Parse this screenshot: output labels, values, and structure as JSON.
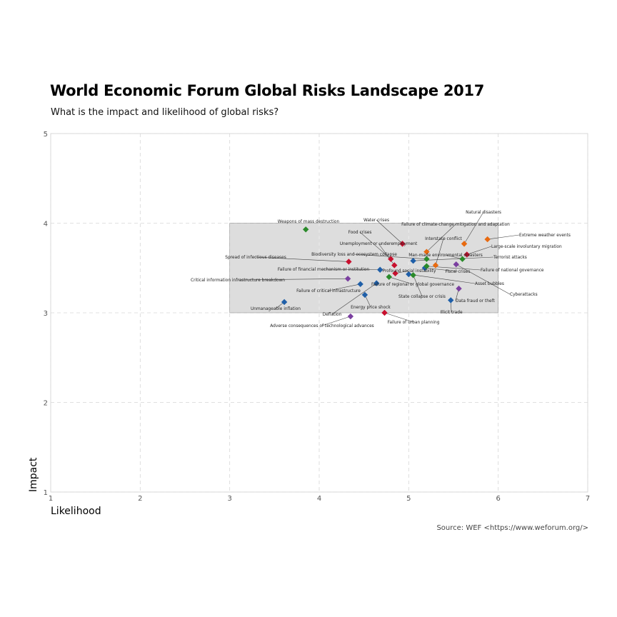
{
  "chart_data": {
    "type": "scatter",
    "title": "World Economic Forum Global Risks Landscape 2017",
    "subtitle": "What is the impact and likelihood of global risks?",
    "xlabel": "Likelihood",
    "ylabel": "Impact",
    "caption": "Source: WEF <https://www.weforum.org/>",
    "xlim": [
      1,
      7
    ],
    "ylim": [
      1,
      5
    ],
    "xticks": [
      "1",
      "2",
      "3",
      "4",
      "5",
      "6",
      "7"
    ],
    "yticks": [
      "1",
      "2",
      "3",
      "4",
      "5"
    ],
    "grid": true,
    "highlight_region": {
      "x": [
        3,
        6
      ],
      "y": [
        3,
        4
      ]
    },
    "colors": {
      "economic": "#1f5fa8",
      "environmental": "#2a8a2a",
      "geopolitical": "#c8102e",
      "societal": "#e86a10",
      "technological": "#7b3fa0"
    },
    "points": [
      {
        "label": "Weapons of mass destruction",
        "x": 3.85,
        "y": 3.93,
        "color": "#2a8a2a"
      },
      {
        "label": "Water crises",
        "x": 4.93,
        "y": 3.77,
        "color": "#c8102e"
      },
      {
        "label": "Natural disasters",
        "x": 5.62,
        "y": 3.77,
        "color": "#e86a10"
      },
      {
        "label": "Failure of climate-change mitigation and adaptation",
        "x": 5.2,
        "y": 3.68,
        "color": "#e86a10"
      },
      {
        "label": "Extreme weather events",
        "x": 5.88,
        "y": 3.82,
        "color": "#e86a10"
      },
      {
        "label": "Food crises",
        "x": 4.8,
        "y": 3.6,
        "color": "#c8102e"
      },
      {
        "label": "Interstate conflict",
        "x": 5.3,
        "y": 3.53,
        "color": "#e86a10"
      },
      {
        "label": "Unemployment or underemployment",
        "x": 4.84,
        "y": 3.53,
        "color": "#c8102e"
      },
      {
        "label": "Large-scale involuntary migration",
        "x": 5.65,
        "y": 3.65,
        "color": "#c8102e"
      },
      {
        "label": "Spread of infectious diseases",
        "x": 4.33,
        "y": 3.57,
        "color": "#c8102e"
      },
      {
        "label": "Biodiversity loss and ecosystem collapse",
        "x": 5.2,
        "y": 3.6,
        "color": "#2a8a2a"
      },
      {
        "label": "Man-made environmental disasters",
        "x": 5.6,
        "y": 3.6,
        "color": "#2a8a2a"
      },
      {
        "label": "Terrorist attacks",
        "x": 5.05,
        "y": 3.58,
        "color": "#1f5fa8"
      },
      {
        "label": "Failure of financial mechanism or institution",
        "x": 4.68,
        "y": 3.48,
        "color": "#1f5fa8"
      },
      {
        "label": "Profound social instability",
        "x": 4.85,
        "y": 3.44,
        "color": "#c8102e"
      },
      {
        "label": "Fiscal crises",
        "x": 5.18,
        "y": 3.5,
        "color": "#1f5fa8"
      },
      {
        "label": "Failure of national governance",
        "x": 5.2,
        "y": 3.52,
        "color": "#2a8a2a"
      },
      {
        "label": "Critical information infrastructure breakdown",
        "x": 4.32,
        "y": 3.38,
        "color": "#7b3fa0"
      },
      {
        "label": "Asset bubbles",
        "x": 5.0,
        "y": 3.43,
        "color": "#1f5fa8"
      },
      {
        "label": "Failure of regional or global governance",
        "x": 4.78,
        "y": 3.4,
        "color": "#2a8a2a"
      },
      {
        "label": "Cyberattacks",
        "x": 5.53,
        "y": 3.54,
        "color": "#7b3fa0"
      },
      {
        "label": "Failure of critical infrastructure",
        "x": 4.46,
        "y": 3.32,
        "color": "#1f5fa8"
      },
      {
        "label": "State collapse or crisis",
        "x": 5.05,
        "y": 3.42,
        "color": "#2a8a2a"
      },
      {
        "label": "Data fraud or theft",
        "x": 5.56,
        "y": 3.27,
        "color": "#7b3fa0"
      },
      {
        "label": "Energy price shock",
        "x": 4.51,
        "y": 3.2,
        "color": "#1f5fa8"
      },
      {
        "label": "Illicit trade",
        "x": 5.47,
        "y": 3.14,
        "color": "#1f5fa8"
      },
      {
        "label": "Unmanageable inflation",
        "x": 3.61,
        "y": 3.12,
        "color": "#1f5fa8"
      },
      {
        "label": "Deflation",
        "x": 4.64,
        "y": 3.33,
        "color": "#1f5fa8"
      },
      {
        "label": "Failure of urban planning",
        "x": 4.73,
        "y": 3.0,
        "color": "#c8102e"
      },
      {
        "label": "Adverse consequences of technological advances",
        "x": 4.35,
        "y": 2.96,
        "color": "#7b3fa0"
      }
    ]
  }
}
